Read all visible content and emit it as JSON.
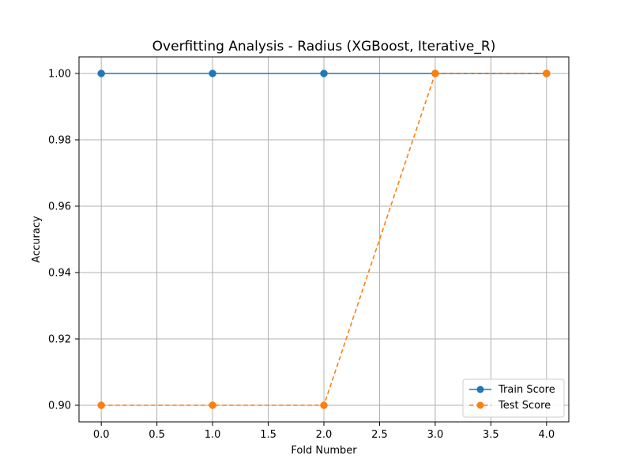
{
  "chart_data": {
    "type": "line",
    "title": "Overfitting Analysis - Radius (XGBoost, Iterative_R)",
    "xlabel": "Fold Number",
    "ylabel": "Accuracy",
    "x": [
      0,
      1,
      2,
      3,
      4
    ],
    "series": [
      {
        "name": "Train Score",
        "values": [
          1.0,
          1.0,
          1.0,
          1.0,
          1.0
        ],
        "color": "#1f77b4",
        "line_style": "solid",
        "marker": "circle"
      },
      {
        "name": "Test Score",
        "values": [
          0.9,
          0.9,
          0.9,
          1.0,
          1.0
        ],
        "color": "#ff7f0e",
        "line_style": "dashed",
        "marker": "circle"
      }
    ],
    "xlim": [
      -0.2,
      4.2
    ],
    "ylim": [
      0.895,
      1.005
    ],
    "xticks": [
      0.0,
      0.5,
      1.0,
      1.5,
      2.0,
      2.5,
      3.0,
      3.5,
      4.0
    ],
    "xtick_labels": [
      "0.0",
      "0.5",
      "1.0",
      "1.5",
      "2.0",
      "2.5",
      "3.0",
      "3.5",
      "4.0"
    ],
    "yticks": [
      0.9,
      0.92,
      0.94,
      0.96,
      0.98,
      1.0
    ],
    "ytick_labels": [
      "0.90",
      "0.92",
      "0.94",
      "0.96",
      "0.98",
      "1.00"
    ],
    "grid": true,
    "legend_position": "lower-right"
  }
}
